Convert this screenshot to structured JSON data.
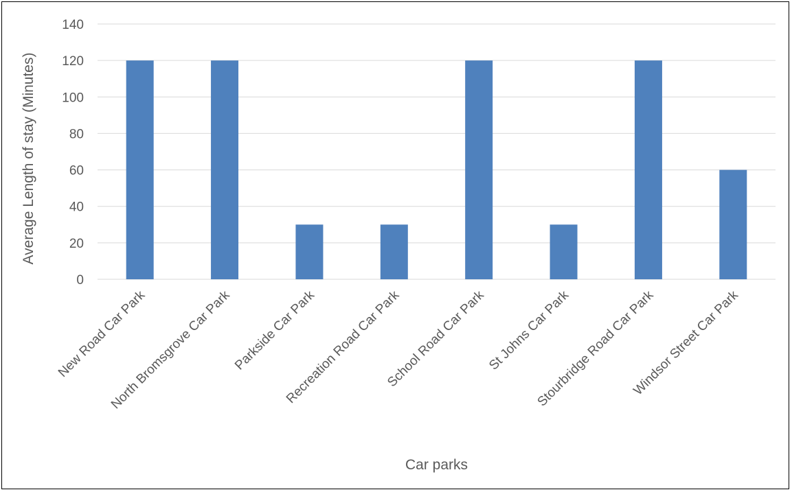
{
  "chart_data": {
    "type": "bar",
    "title": "",
    "xlabel": "Car parks",
    "ylabel": "Average Length of stay (Minutes)",
    "categories": [
      "New Road Car Park",
      "North Bromsgrove Car Park",
      "Parkside Car Park",
      "Recreation Road Car Park",
      "School Road Car Park",
      "St Johns Car Park",
      "Stourbridge Road Car Park",
      "Windsor Street Car Park"
    ],
    "series": [
      {
        "values": [
          120,
          120,
          30,
          30,
          120,
          30,
          120,
          60
        ]
      }
    ],
    "ylim": [
      0,
      140
    ],
    "yticks": [
      "0",
      "20",
      "40",
      "60",
      "80",
      "100",
      "120",
      "140"
    ],
    "grid": true,
    "legend": "none",
    "colors": {
      "bar": "#4F81BD",
      "grid": "#D9D9D9",
      "text": "#595959",
      "border": "#000000"
    }
  }
}
